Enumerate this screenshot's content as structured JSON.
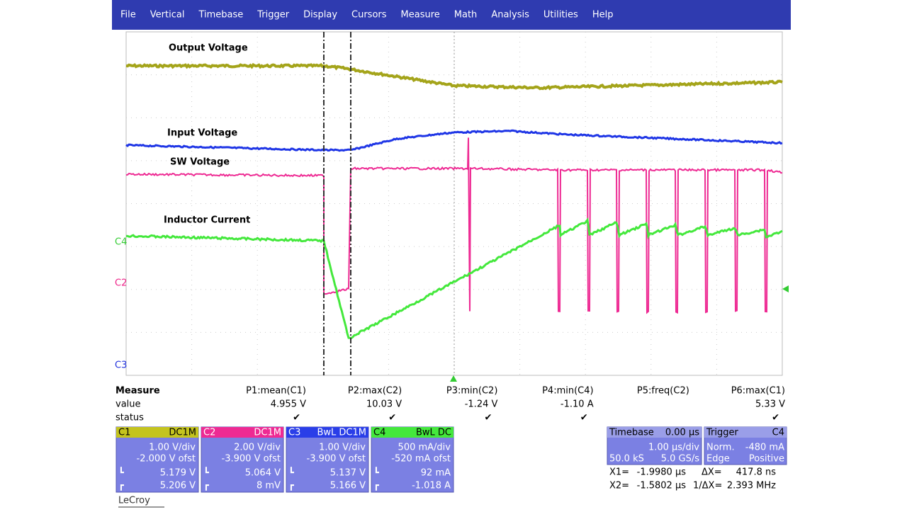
{
  "menu": [
    "File",
    "Vertical",
    "Timebase",
    "Trigger",
    "Display",
    "Cursors",
    "Measure",
    "Math",
    "Analysis",
    "Utilities",
    "Help"
  ],
  "trace_labels": [
    "Output Voltage",
    "Input Voltage",
    "SW Voltage",
    "Inductor Current"
  ],
  "markers": [
    "C4",
    "C2",
    "C3"
  ],
  "measure": {
    "title": "Measure",
    "row_labels": [
      "value",
      "status"
    ],
    "params": [
      {
        "name": "P1:mean(C1)",
        "value": "4.955 V",
        "status": "✔"
      },
      {
        "name": "P2:max(C2)",
        "value": "10.03 V",
        "status": "✔"
      },
      {
        "name": "P3:min(C2)",
        "value": "-1.24 V",
        "status": "✔"
      },
      {
        "name": "P4:min(C4)",
        "value": "-1.10 A",
        "status": "✔"
      },
      {
        "name": "P5:freq(C2)",
        "value": ""
      },
      {
        "name": "P6:max(C1)",
        "value": "5.33 V",
        "status": "✔"
      }
    ]
  },
  "channels": [
    {
      "id": "C1",
      "coupling": "DC1M",
      "vdiv": "1.00 V/div",
      "offset": "-2.000 V ofst",
      "l": "5.179 V",
      "r": "5.206 V"
    },
    {
      "id": "C2",
      "coupling": "DC1M",
      "vdiv": "2.00 V/div",
      "offset": "-3.900 V ofst",
      "l": "5.064 V",
      "r": "8 mV"
    },
    {
      "id": "C3",
      "coupling": "BwL DC1M",
      "vdiv": "1.00 V/div",
      "offset": "-3.900 V ofst",
      "l": "5.137 V",
      "r": "5.166 V"
    },
    {
      "id": "C4",
      "coupling": "BwL DC",
      "vdiv": "500 mA/div",
      "offset": "-520 mA ofst",
      "l": "92 mA",
      "r": "-1.018 A"
    }
  ],
  "timebase": {
    "title": "Timebase",
    "delay": "0.00 µs",
    "tdiv": "1.00 µs/div",
    "samples": "50.0 kS",
    "rate": "5.0 GS/s"
  },
  "trigger": {
    "title": "Trigger",
    "source": "C4",
    "mode": "Norm.",
    "level": "-480 mA",
    "type": "Edge",
    "slope": "Positive"
  },
  "cursors": {
    "x1_label": "X1=",
    "x1": "-1.9980 µs",
    "dx_label": "ΔX=",
    "dx": "417.8 ns",
    "x2_label": "X2=",
    "x2": "-1.5802 µs",
    "inv_label": "1/ΔX=",
    "inv": "2.393 MHz"
  },
  "brand": "LeCroy"
}
